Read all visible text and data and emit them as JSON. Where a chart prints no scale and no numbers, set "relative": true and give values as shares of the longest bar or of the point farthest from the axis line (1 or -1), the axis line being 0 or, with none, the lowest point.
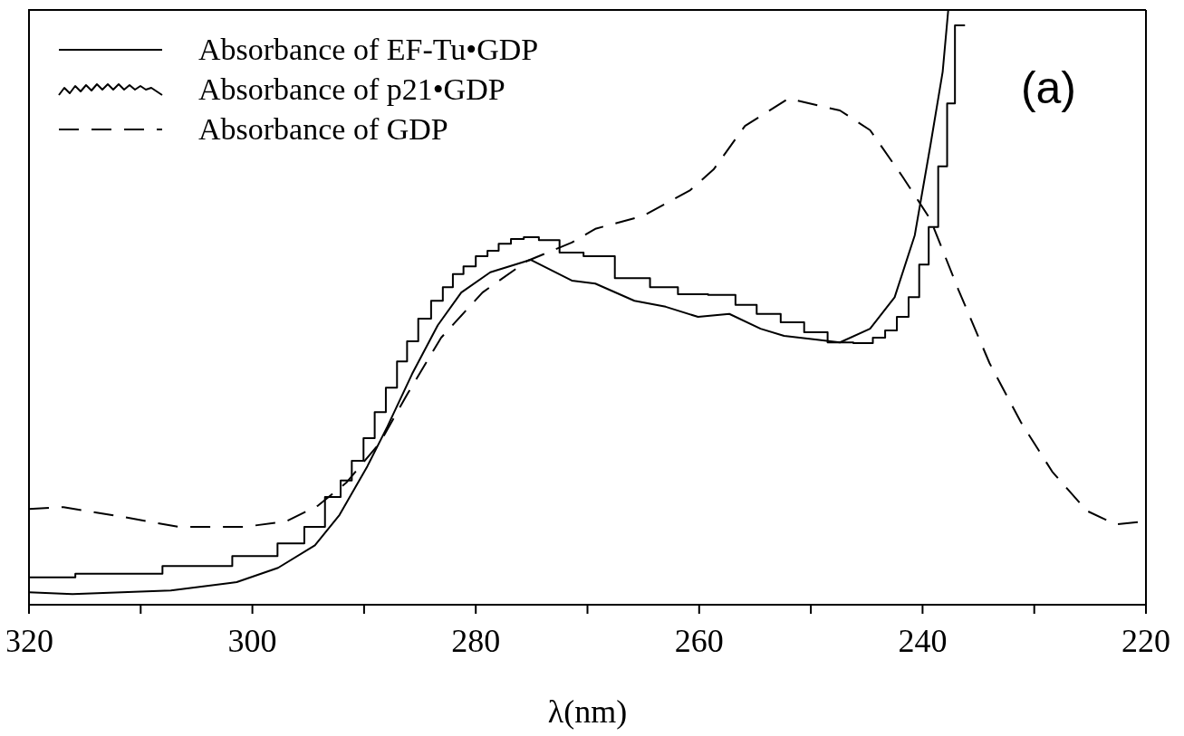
{
  "chart_data": {
    "type": "line",
    "xlabel": "λ(nm)",
    "relative": true,
    "legend": "top left",
    "annotations": [
      "(a)"
    ],
    "xlim": [
      320,
      220
    ],
    "xticks": [
      320,
      {
        "value": 310,
        "label": null
      },
      300,
      {
        "value": 290,
        "label": null
      },
      280,
      {
        "value": 270,
        "label": null
      },
      260,
      {
        "value": 250,
        "label": null
      },
      240,
      {
        "value": 230,
        "label": null
      },
      220
    ],
    "series": [
      {
        "name": "Absorbance of EF-Tu•GDP",
        "color": "#000000",
        "line_style": "solid",
        "x": [
          320,
          316.1,
          307.3,
          301.4,
          297.7,
          294.4,
          292.2,
          289.7,
          287.9,
          285.7,
          283.4,
          281.3,
          278.7,
          275.1,
          271.4,
          269.3,
          265.8,
          263.0,
          260.1,
          257.3,
          254.5,
          252.4,
          249.6,
          247.4,
          244.7,
          242.5,
          240.7,
          239.3,
          238.2,
          237.7
        ],
        "values": [
          0.021,
          0.018,
          0.024,
          0.038,
          0.062,
          0.1,
          0.151,
          0.233,
          0.3,
          0.388,
          0.47,
          0.525,
          0.559,
          0.58,
          0.545,
          0.54,
          0.511,
          0.501,
          0.484,
          0.489,
          0.464,
          0.452,
          0.446,
          0.441,
          0.464,
          0.517,
          0.621,
          0.772,
          0.896,
          1
        ]
      },
      {
        "name": "Absorbance of p21•GDP",
        "type": "step",
        "color": "#000000",
        "line_style": "solid",
        "x": [
          320,
          311.7,
          304.4,
          299.2,
          296.3,
          294.4,
          292.6,
          291.6,
          290.6,
          289.5,
          288.6,
          287.5,
          286.6,
          285.7,
          284.6,
          283.4,
          282.5,
          281.6,
          280.6,
          279.4,
          278.5,
          277.4,
          276.3,
          275.1,
          273.6,
          271.4,
          269.3,
          265.8,
          263.0,
          260.8,
          257.6,
          255.9,
          253.8,
          251.6,
          249.6,
          247.4,
          245.0,
          243.9,
          242.8,
          241.8,
          240.7,
          239.9,
          239.0,
          238.2,
          237.4,
          236.8,
          236.2
        ],
        "values": [
          0.046,
          0.052,
          0.065,
          0.082,
          0.103,
          0.131,
          0.181,
          0.209,
          0.242,
          0.28,
          0.324,
          0.365,
          0.409,
          0.443,
          0.481,
          0.511,
          0.534,
          0.556,
          0.569,
          0.586,
          0.595,
          0.607,
          0.615,
          0.618,
          0.613,
          0.592,
          0.586,
          0.549,
          0.534,
          0.522,
          0.521,
          0.504,
          0.489,
          0.475,
          0.458,
          0.441,
          0.44,
          0.449,
          0.461,
          0.484,
          0.517,
          0.572,
          0.635,
          0.737,
          0.843,
          0.974,
          0.974
        ]
      },
      {
        "name": "Absorbance of GDP",
        "color": "#000000",
        "line_style": "dashed",
        "x": [
          320,
          316.9,
          311.7,
          306.6,
          300.7,
          297.0,
          294.1,
          291.6,
          288.6,
          286.1,
          283.1,
          279.4,
          275.4,
          271.4,
          269.3,
          265.0,
          260.8,
          258.7,
          255.9,
          252.0,
          247.4,
          244.7,
          241.8,
          239.3,
          236.8,
          234.0,
          231.2,
          228.4,
          225.3,
          222.7,
          220.7
        ],
        "values": [
          0.161,
          0.164,
          0.148,
          0.131,
          0.131,
          0.14,
          0.167,
          0.205,
          0.272,
          0.355,
          0.449,
          0.525,
          0.578,
          0.609,
          0.632,
          0.654,
          0.697,
          0.732,
          0.805,
          0.851,
          0.831,
          0.798,
          0.72,
          0.648,
          0.53,
          0.406,
          0.307,
          0.224,
          0.158,
          0.135,
          0.139
        ]
      }
    ]
  }
}
